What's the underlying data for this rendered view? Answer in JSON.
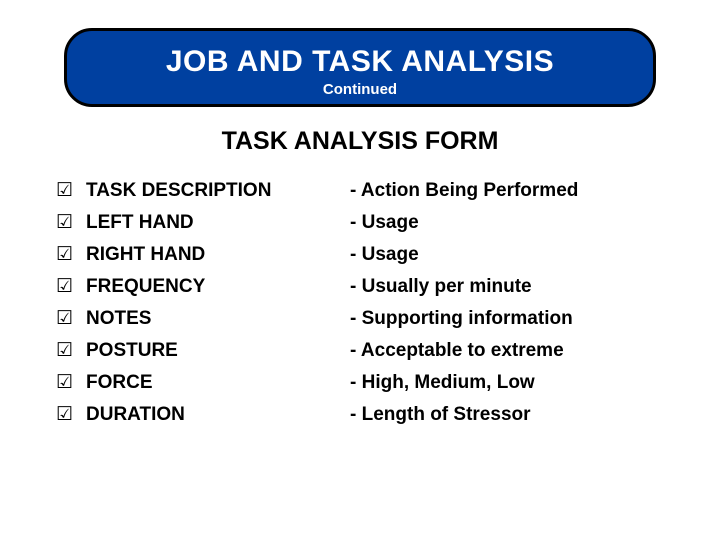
{
  "header": {
    "title": "JOB AND TASK ANALYSIS",
    "subtitle": "Continued",
    "bg_color": "#0040a0",
    "border_color": "#000000",
    "text_color": "#ffffff",
    "border_radius": 28,
    "title_fontsize": 30,
    "subtitle_fontsize": 15
  },
  "section_title": {
    "text": "TASK ANALYSIS FORM",
    "fontsize": 25,
    "color": "#000000"
  },
  "checkmark_glyph": "☑",
  "items": [
    {
      "label": "TASK DESCRIPTION",
      "desc": "- Action Being Performed"
    },
    {
      "label": "LEFT HAND",
      "desc": "- Usage"
    },
    {
      "label": "RIGHT HAND",
      "desc": "- Usage"
    },
    {
      "label": "FREQUENCY",
      "desc": "- Usually per minute"
    },
    {
      "label": "NOTES",
      "desc": "- Supporting information"
    },
    {
      "label": "POSTURE",
      "desc": "- Acceptable to extreme"
    },
    {
      "label": "FORCE",
      "desc": "- High, Medium, Low"
    },
    {
      "label": "DURATION",
      "desc": "- Length of Stressor"
    }
  ],
  "layout": {
    "slide_width": 720,
    "slide_height": 540,
    "left_col_width": 270,
    "item_fontsize": 19,
    "item_line_height": 26,
    "background_color": "#ffffff"
  }
}
